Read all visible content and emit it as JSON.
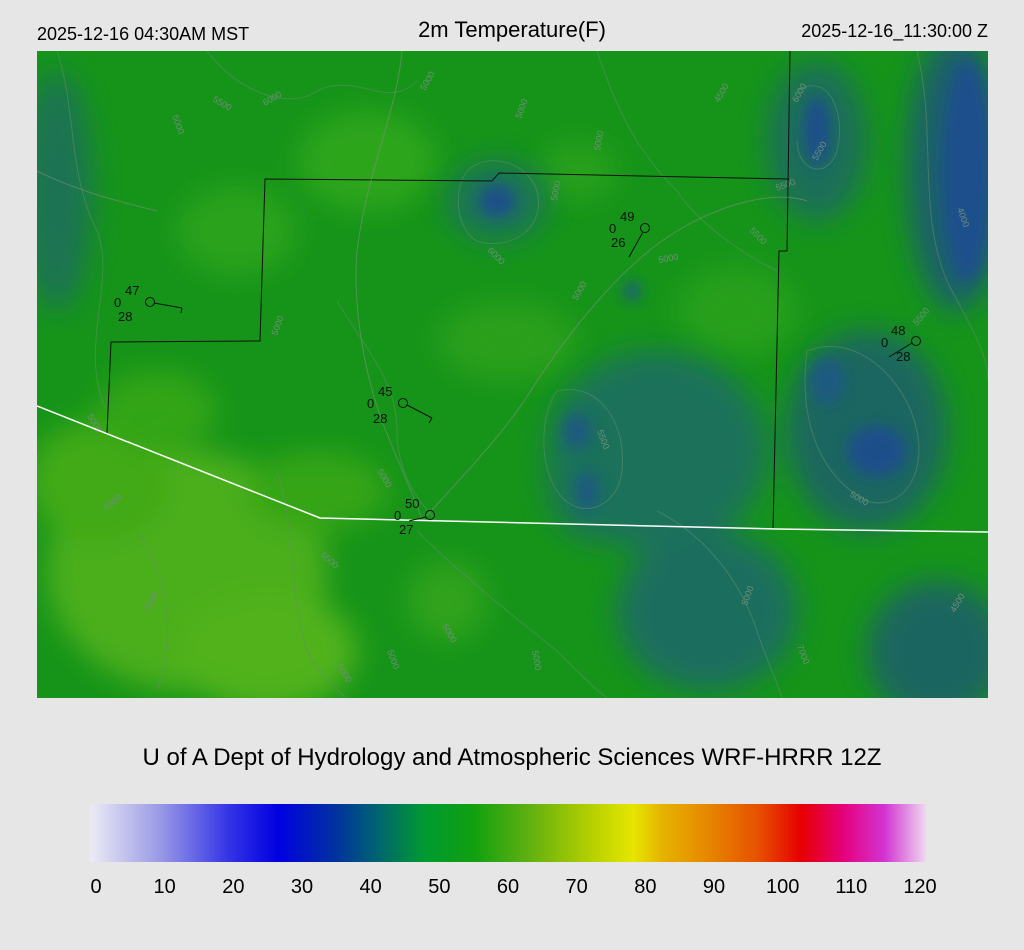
{
  "header": {
    "local_time": "2025-12-16 04:30AM MST",
    "title": "2m Temperature(F)",
    "utc_time": "2025-12-16_11:30:00 Z"
  },
  "credit": "U of A Dept of Hydrology and Atmospheric Sciences WRF-HRRR 12Z",
  "colorbar": {
    "ticks": [
      "0",
      "10",
      "20",
      "30",
      "40",
      "50",
      "60",
      "70",
      "80",
      "90",
      "100",
      "110",
      "120"
    ],
    "min": 0,
    "max": 120,
    "stops": [
      {
        "v": 0,
        "color": "#ebebf5"
      },
      {
        "v": 10,
        "color": "#9a9ae6"
      },
      {
        "v": 20,
        "color": "#3333e6"
      },
      {
        "v": 27,
        "color": "#0000e0"
      },
      {
        "v": 35,
        "color": "#0030a0"
      },
      {
        "v": 42,
        "color": "#006a6a"
      },
      {
        "v": 48,
        "color": "#009a30"
      },
      {
        "v": 55,
        "color": "#10a010"
      },
      {
        "v": 63,
        "color": "#60b010"
      },
      {
        "v": 72,
        "color": "#b6d000"
      },
      {
        "v": 78,
        "color": "#e6e600"
      },
      {
        "v": 82,
        "color": "#e6b400"
      },
      {
        "v": 88,
        "color": "#e68c00"
      },
      {
        "v": 96,
        "color": "#e65000"
      },
      {
        "v": 102,
        "color": "#e60000"
      },
      {
        "v": 108,
        "color": "#e6007a"
      },
      {
        "v": 114,
        "color": "#d233d2"
      },
      {
        "v": 120,
        "color": "#f0d8f0"
      }
    ]
  },
  "stations": [
    {
      "temp": "47",
      "extra": "0",
      "dewpoint": "28"
    },
    {
      "temp": "49",
      "extra": "0",
      "dewpoint": "26"
    },
    {
      "temp": "45",
      "extra": "0",
      "dewpoint": "28"
    },
    {
      "temp": "48",
      "extra": "0",
      "dewpoint": "28"
    },
    {
      "temp": "50",
      "extra": "0",
      "dewpoint": "27"
    }
  ],
  "contours": [
    "4000",
    "4500",
    "5000",
    "5500",
    "6000",
    "7000"
  ],
  "colors": {
    "background": "#e6e6e6",
    "base_green": "#17a017",
    "dark_region": "#1a6a5a",
    "cold_region": "#1f4fa0",
    "border": "#ffffff",
    "county": "#111111"
  }
}
